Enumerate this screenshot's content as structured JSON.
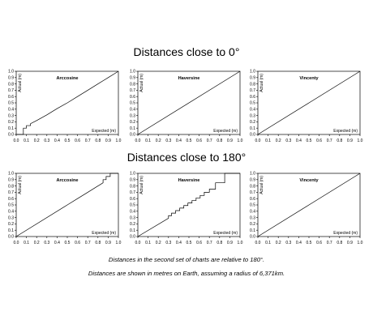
{
  "sections": [
    {
      "title": "Distances close to 0°"
    },
    {
      "title": "Distances close to 180°"
    }
  ],
  "footnotes": [
    "Distances in the second set of charts are relative to 180°.",
    "Distances are shown in metres on Earth, assuming a radius of 6,371km."
  ],
  "chart_data": [
    {
      "type": "line",
      "title": "Arccosine",
      "xlabel": "Expected (m)",
      "ylabel": "Actual (m)",
      "xlim": [
        0,
        1
      ],
      "ylim": [
        0,
        1
      ],
      "x_ticks": [
        "0.0",
        "0.1",
        "0.2",
        "0.3",
        "0.4",
        "0.5",
        "0.6",
        "0.7",
        "0.8",
        "0.9",
        "1.0"
      ],
      "y_ticks": [
        "0.0",
        "0.1",
        "0.2",
        "0.3",
        "0.4",
        "0.5",
        "0.6",
        "0.7",
        "0.8",
        "0.9",
        "1.0"
      ],
      "series": [
        {
          "x": [
            0.0,
            0.07,
            0.07,
            0.1,
            0.1,
            0.14,
            0.14,
            0.2,
            0.3,
            0.4,
            0.5,
            0.6,
            0.7,
            0.8,
            0.9,
            1.0
          ],
          "y": [
            0.0,
            0.0,
            0.1,
            0.1,
            0.14,
            0.14,
            0.17,
            0.22,
            0.31,
            0.41,
            0.5,
            0.6,
            0.7,
            0.8,
            0.9,
            1.0
          ]
        }
      ]
    },
    {
      "type": "line",
      "title": "Haversine",
      "xlabel": "Expected (m)",
      "ylabel": "Actual (m)",
      "xlim": [
        0,
        1
      ],
      "ylim": [
        0,
        1
      ],
      "x_ticks": [
        "0.0",
        "0.1",
        "0.2",
        "0.3",
        "0.4",
        "0.5",
        "0.6",
        "0.7",
        "0.8",
        "0.9",
        "1.0"
      ],
      "y_ticks": [
        "0.0",
        "0.1",
        "0.2",
        "0.3",
        "0.4",
        "0.5",
        "0.6",
        "0.7",
        "0.8",
        "0.9",
        "1.0"
      ],
      "series": [
        {
          "x": [
            0.0,
            1.0
          ],
          "y": [
            0.0,
            1.0
          ]
        }
      ]
    },
    {
      "type": "line",
      "title": "Vincenty",
      "xlabel": "Expected (m)",
      "ylabel": "Actual (m)",
      "xlim": [
        0,
        1
      ],
      "ylim": [
        0,
        1
      ],
      "x_ticks": [
        "0.0",
        "0.1",
        "0.2",
        "0.3",
        "0.4",
        "0.5",
        "0.6",
        "0.7",
        "0.8",
        "0.9",
        "1.0"
      ],
      "y_ticks": [
        "0.0",
        "0.1",
        "0.2",
        "0.3",
        "0.4",
        "0.5",
        "0.6",
        "0.7",
        "0.8",
        "0.9",
        "1.0"
      ],
      "series": [
        {
          "x": [
            0.0,
            1.0
          ],
          "y": [
            0.0,
            1.0
          ]
        }
      ]
    },
    {
      "type": "line",
      "title": "Arccosine",
      "xlabel": "Expected (m)",
      "ylabel": "Actual (m)",
      "xlim": [
        0,
        1
      ],
      "ylim": [
        0,
        1
      ],
      "x_ticks": [
        "0.0",
        "0.1",
        "0.2",
        "0.3",
        "0.4",
        "0.5",
        "0.6",
        "0.7",
        "0.8",
        "0.9",
        "1.0"
      ],
      "y_ticks": [
        "0.0",
        "0.1",
        "0.2",
        "0.3",
        "0.4",
        "0.5",
        "0.6",
        "0.7",
        "0.8",
        "0.9",
        "1.0"
      ],
      "series": [
        {
          "x": [
            0.0,
            0.5,
            0.6,
            0.7,
            0.8,
            0.82,
            0.85,
            0.85,
            0.88,
            0.88,
            0.92,
            0.92,
            1.0
          ],
          "y": [
            0.0,
            0.5,
            0.6,
            0.7,
            0.8,
            0.82,
            0.85,
            0.9,
            0.9,
            0.95,
            0.95,
            1.0,
            1.0
          ]
        }
      ]
    },
    {
      "type": "line",
      "title": "Haversine",
      "xlabel": "Expected (m)",
      "ylabel": "Actual (m)",
      "xlim": [
        0,
        1
      ],
      "ylim": [
        0,
        1
      ],
      "x_ticks": [
        "0.0",
        "0.1",
        "0.2",
        "0.3",
        "0.4",
        "0.5",
        "0.6",
        "0.7",
        "0.8",
        "0.9",
        "1.0"
      ],
      "y_ticks": [
        "0.0",
        "0.1",
        "0.2",
        "0.3",
        "0.4",
        "0.5",
        "0.6",
        "0.7",
        "0.8",
        "0.9",
        "1.0"
      ],
      "series": [
        {
          "x": [
            0.0,
            0.3,
            0.3,
            0.33,
            0.33,
            0.37,
            0.37,
            0.41,
            0.41,
            0.45,
            0.45,
            0.49,
            0.49,
            0.53,
            0.53,
            0.57,
            0.57,
            0.61,
            0.61,
            0.65,
            0.65,
            0.7,
            0.7,
            0.76,
            0.76,
            0.85,
            0.85,
            1.0
          ],
          "y": [
            0.0,
            0.29,
            0.33,
            0.33,
            0.37,
            0.37,
            0.41,
            0.41,
            0.45,
            0.45,
            0.49,
            0.49,
            0.53,
            0.53,
            0.57,
            0.57,
            0.61,
            0.61,
            0.65,
            0.65,
            0.7,
            0.7,
            0.75,
            0.75,
            0.85,
            0.85,
            1.0,
            1.0
          ]
        }
      ]
    },
    {
      "type": "line",
      "title": "Vincenty",
      "xlabel": "Expected (m)",
      "ylabel": "Actual (m)",
      "xlim": [
        0,
        1
      ],
      "ylim": [
        0,
        1
      ],
      "x_ticks": [
        "0.0",
        "0.1",
        "0.2",
        "0.3",
        "0.4",
        "0.5",
        "0.6",
        "0.7",
        "0.8",
        "0.9",
        "1.0"
      ],
      "y_ticks": [
        "0.0",
        "0.1",
        "0.2",
        "0.3",
        "0.4",
        "0.5",
        "0.6",
        "0.7",
        "0.8",
        "0.9",
        "1.0"
      ],
      "series": [
        {
          "x": [
            0.0,
            1.0
          ],
          "y": [
            0.0,
            1.0
          ]
        }
      ]
    }
  ]
}
